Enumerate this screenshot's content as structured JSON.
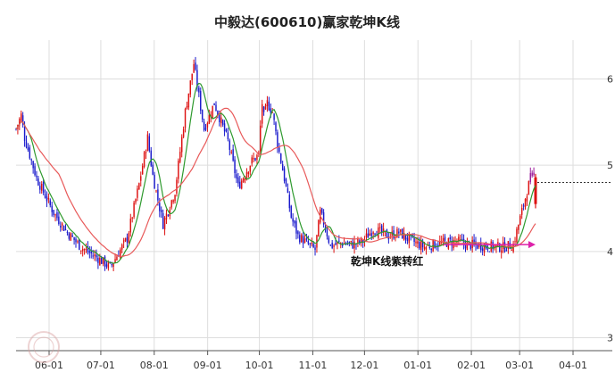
{
  "chart_data": {
    "type": "candlestick",
    "title": "中毅达(600610)赢家乾坤K线",
    "x_tick_labels": [
      "06-01",
      "07-01",
      "08-01",
      "09-01",
      "10-01",
      "11-01",
      "12-01",
      "01-01",
      "02-01",
      "03-01",
      "04-01"
    ],
    "y_tick_labels": [
      "6",
      "5",
      "4",
      "3"
    ],
    "ylim": [
      2.85,
      6.45
    ],
    "y_ticks": [
      6,
      5,
      4,
      3
    ],
    "grid": true,
    "annotation": "乾坤K线紫转红",
    "reference_level": 4.8,
    "colors": {
      "up": "#dd1111",
      "down": "#1a1acc",
      "signal": "#9a1a9a",
      "ma_short": "#2e9a2e",
      "ma_long": "#e85a5a",
      "arrow": "#dd22aa",
      "grid": "#dddddd",
      "axis": "#555555"
    },
    "path_x": [
      0,
      3,
      5,
      12,
      22,
      30,
      38,
      48,
      55,
      65,
      72,
      77,
      80,
      86,
      93,
      99,
      104,
      110,
      116,
      124,
      130,
      138,
      142,
      143,
      144,
      145,
      147,
      150,
      153,
      157,
      161,
      165,
      170,
      175,
      178,
      181,
      184,
      190,
      197,
      203,
      209,
      218,
      224,
      229,
      234,
      239,
      244,
      250,
      258,
      264,
      270,
      277,
      285,
      291,
      301,
      304
    ],
    "path_close": [
      5.42,
      5.58,
      5.32,
      4.85,
      4.45,
      4.22,
      4.05,
      3.92,
      3.82,
      4.15,
      4.78,
      5.32,
      4.88,
      4.32,
      4.7,
      5.62,
      6.18,
      5.42,
      5.72,
      5.28,
      4.75,
      5.05,
      5.12,
      5.45,
      5.72,
      5.56,
      5.72,
      5.62,
      5.25,
      4.85,
      4.4,
      4.18,
      4.1,
      4.02,
      4.45,
      4.28,
      4.06,
      4.1,
      4.08,
      4.12,
      4.26,
      4.18,
      4.22,
      4.15,
      4.1,
      4.05,
      4.08,
      4.1,
      4.12,
      4.08,
      4.07,
      4.06,
      4.05,
      4.08,
      4.85,
      4.88
    ],
    "signal_from_day": 301,
    "signal_close": 4.85
  }
}
